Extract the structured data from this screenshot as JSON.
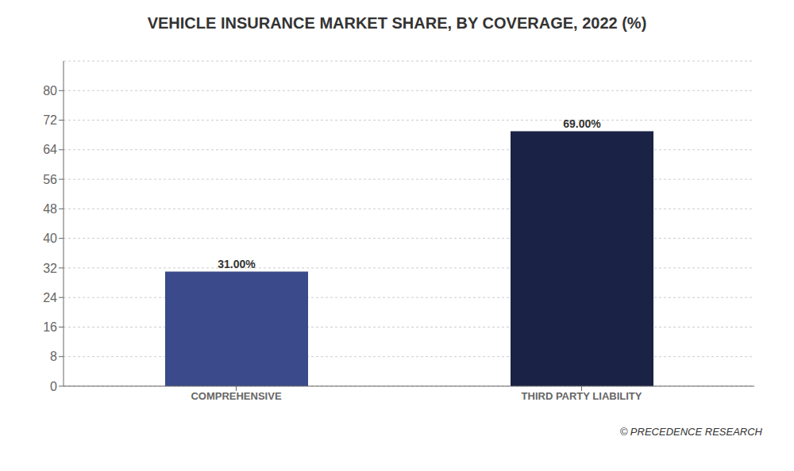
{
  "chart_data": {
    "type": "bar",
    "title": "VEHICLE INSURANCE MARKET SHARE, BY COVERAGE, 2022 (%)",
    "categories": [
      "COMPREHENSIVE",
      "THIRD PARTY LIABILITY"
    ],
    "values": [
      31.0,
      69.0
    ],
    "value_labels": [
      "31.00%",
      "69.00%"
    ],
    "colors": [
      "#3a4a8a",
      "#1a2245"
    ],
    "ylim": [
      0,
      88
    ],
    "yticks": [
      0,
      8,
      16,
      24,
      32,
      40,
      48,
      56,
      64,
      72,
      80
    ],
    "grid": true,
    "data_labels": true,
    "annotations": [
      {
        "text": "© PRECEDENCE RESEARCH"
      }
    ]
  }
}
